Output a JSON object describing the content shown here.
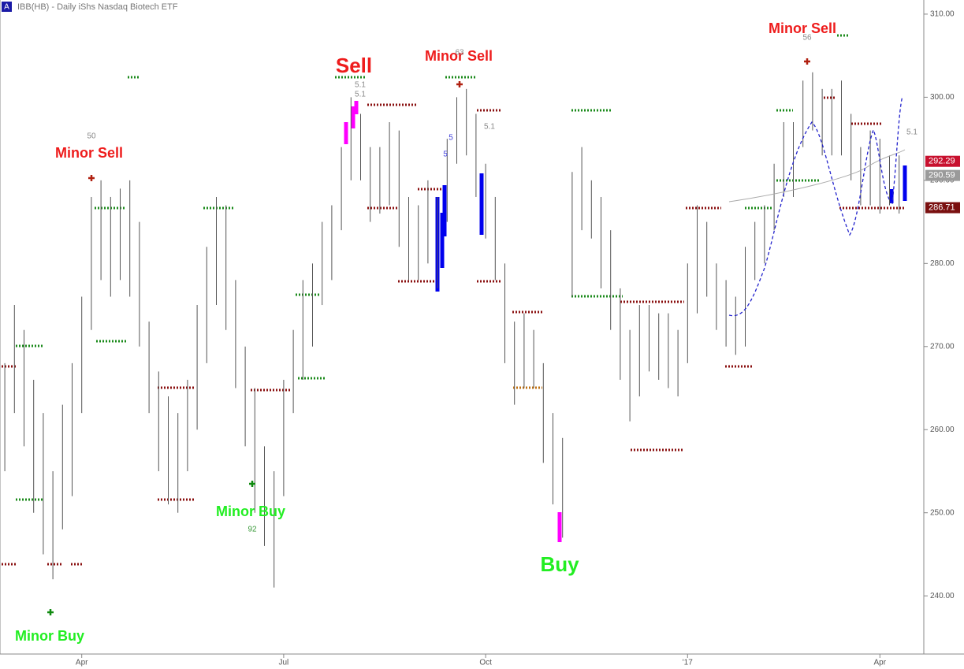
{
  "chart_data": {
    "type": "hlc",
    "title": "IBB(HB) - Daily  iShs Nasdaq Biotech ETF",
    "badge": "A",
    "categories": [
      null,
      null,
      null,
      null,
      null,
      null,
      null,
      null,
      "Apr",
      null,
      null,
      null,
      null,
      null,
      null,
      null,
      null,
      null,
      null,
      null,
      null,
      null,
      null,
      null,
      null,
      null,
      null,
      null,
      null,
      "Jul",
      null,
      null,
      null,
      null,
      null,
      null,
      null,
      null,
      null,
      null,
      null,
      null,
      null,
      null,
      null,
      null,
      null,
      null,
      null,
      null,
      "Oct",
      null,
      null,
      null,
      null,
      null,
      null,
      null,
      null,
      null,
      null,
      null,
      null,
      null,
      null,
      null,
      null,
      null,
      null,
      null,
      null,
      "'17",
      null,
      null,
      null,
      null,
      null,
      null,
      null,
      null,
      null,
      null,
      null,
      null,
      null,
      null,
      null,
      null,
      null,
      null,
      null,
      "Apr",
      null,
      null
    ],
    "high": [
      268,
      275,
      272,
      266,
      262,
      255,
      263,
      268,
      276,
      288,
      290,
      288,
      289,
      290,
      285,
      273,
      267,
      264,
      262,
      266,
      275,
      282,
      288,
      287,
      278,
      270,
      265,
      258,
      255,
      266,
      272,
      278,
      280,
      285,
      287,
      294,
      300,
      298,
      294,
      294,
      297,
      296,
      288,
      287,
      290,
      288,
      295,
      300,
      301,
      298,
      292,
      288,
      280,
      273,
      274,
      272,
      268,
      262,
      259,
      291,
      294,
      290,
      288,
      284,
      277,
      272,
      275,
      275,
      274,
      274,
      272,
      280,
      287,
      285,
      280,
      278,
      276,
      282,
      285,
      287,
      292,
      297,
      297,
      302,
      303,
      301,
      301,
      302,
      298,
      294,
      296,
      295,
      293,
      293
    ],
    "low": [
      255,
      262,
      258,
      250,
      245,
      242,
      248,
      252,
      262,
      272,
      278,
      276,
      278,
      276,
      270,
      262,
      255,
      251,
      250,
      255,
      260,
      268,
      275,
      272,
      265,
      258,
      250,
      246,
      241,
      252,
      262,
      266,
      270,
      275,
      278,
      284,
      290,
      290,
      285,
      286,
      287,
      282,
      278,
      278,
      280,
      277,
      285,
      292,
      293,
      288,
      283,
      278,
      268,
      263,
      265,
      265,
      256,
      251,
      247,
      276,
      284,
      283,
      277,
      272,
      266,
      261,
      264,
      267,
      266,
      265,
      264,
      268,
      274,
      276,
      272,
      270,
      269,
      270,
      278,
      280,
      284,
      288,
      288,
      294,
      296,
      293,
      293,
      293,
      290,
      287,
      287,
      286,
      287,
      286
    ],
    "ylim": [
      233,
      311.7
    ],
    "yticks": [
      {
        "value": 240,
        "label": "240.00"
      },
      {
        "value": 250,
        "label": "250.00"
      },
      {
        "value": 260,
        "label": "260.00"
      },
      {
        "value": 270,
        "label": "270.00"
      },
      {
        "value": 280,
        "label": "280.00"
      },
      {
        "value": 290,
        "label": "290.00"
      },
      {
        "value": 300,
        "label": "300.00"
      },
      {
        "value": 310,
        "label": "310.00"
      }
    ],
    "price_tags": [
      {
        "value": 292.29,
        "color": "#c8102e"
      },
      {
        "value": 290.59,
        "color": "#9a9a9a"
      },
      {
        "value": 286.71,
        "color": "#7a1010"
      }
    ],
    "annotations": [
      "Minor Sell",
      "Sell",
      "Minor Sell",
      "Minor Sell",
      "Minor Buy",
      "Minor Buy",
      "Buy"
    ],
    "small_labels": [
      50,
      92,
      63,
      56,
      5.1,
      5.1,
      5.1,
      5.1,
      5.0,
      5.0
    ],
    "bar_color": "#555555"
  }
}
